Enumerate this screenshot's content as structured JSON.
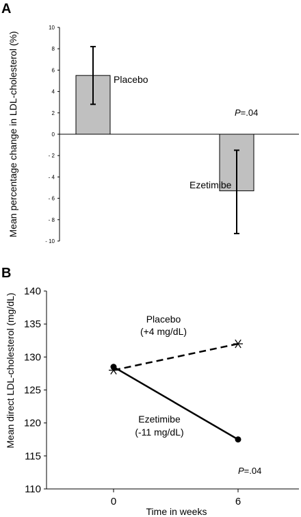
{
  "figure": {
    "panels": [
      "A",
      "B"
    ]
  },
  "chart_data": [
    {
      "type": "bar",
      "panel": "A",
      "ylabel": "Mean percentage change in LDL-cholesterol (%)",
      "ylim": [
        -10,
        10
      ],
      "yticks": [
        10,
        8,
        6,
        4,
        2,
        0,
        -2,
        -4,
        -6,
        -8,
        -10
      ],
      "categories": [
        "Placebo",
        "Ezetimibe"
      ],
      "values": [
        5.5,
        -5.3
      ],
      "error_low": [
        2.8,
        -9.3
      ],
      "error_high": [
        8.2,
        -1.5
      ],
      "bar_color": "#c0c0c0",
      "annotation": {
        "italic": "P",
        "text": "=.04"
      }
    },
    {
      "type": "line",
      "panel": "B",
      "xlabel": "Time in weeks",
      "ylabel": "Mean direct LDL-cholesterol (mg/dL)",
      "ylim": [
        110,
        140
      ],
      "yticks": [
        140,
        135,
        130,
        125,
        120,
        115,
        110
      ],
      "x": [
        0,
        6
      ],
      "series": [
        {
          "name": "Placebo",
          "note": "(+4 mg/dL)",
          "values": [
            128,
            132
          ],
          "style": "dashed",
          "marker": "asterisk"
        },
        {
          "name": "Ezetimibe",
          "note": "(-11 mg/dL)",
          "values": [
            128.5,
            117.5
          ],
          "style": "solid",
          "marker": "circle"
        }
      ],
      "annotation": {
        "italic": "P",
        "text": "=.04"
      }
    }
  ]
}
